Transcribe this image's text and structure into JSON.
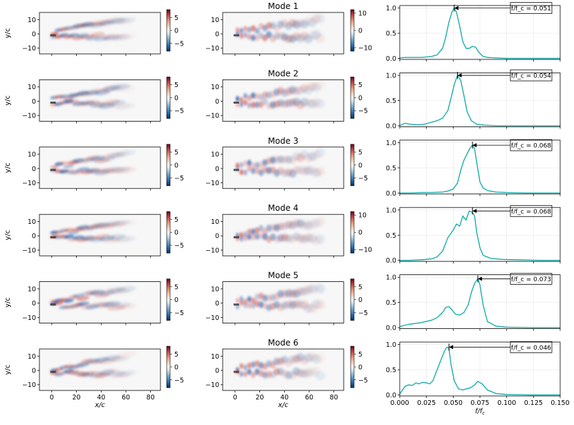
{
  "chart_data": {
    "type": "figure-grid",
    "rows": 6,
    "field_axes": {
      "xlabel": "x/c",
      "ylabel": "y/c",
      "xlim": [
        -10,
        88
      ],
      "ylim": [
        -14,
        15
      ],
      "xticks": [
        "0",
        "20",
        "40",
        "60",
        "80"
      ],
      "yticks": [
        "10",
        "0",
        "−10"
      ]
    },
    "spectrum_axes": {
      "xlabel": "f/f_c",
      "xlim": [
        0.0,
        0.15
      ],
      "ylim": [
        -0.02,
        1.05
      ],
      "xticks": [
        "0.000",
        "0.025",
        "0.050",
        "0.075",
        "0.100",
        "0.125",
        "0.150"
      ],
      "yticks": [
        "0.0",
        "0.5",
        "1.0"
      ]
    },
    "modes": [
      {
        "title": "Mode 1",
        "peak_label": "f/f_c = 0.051",
        "peak_freq": 0.051,
        "cb_left": {
          "ticks": [
            "5",
            "0",
            "−5"
          ],
          "range": 8
        },
        "cb_mid": {
          "ticks": [
            "10",
            "0",
            "−10"
          ],
          "range": 12
        },
        "spectrum": {
          "x": [
            0.0,
            0.005,
            0.01,
            0.015,
            0.02,
            0.025,
            0.03,
            0.035,
            0.04,
            0.043,
            0.046,
            0.049,
            0.051,
            0.053,
            0.056,
            0.059,
            0.062,
            0.065,
            0.068,
            0.071,
            0.074,
            0.078,
            0.082,
            0.09,
            0.1,
            0.12,
            0.15
          ],
          "y": [
            0.01,
            0.02,
            0.02,
            0.02,
            0.02,
            0.03,
            0.04,
            0.07,
            0.2,
            0.42,
            0.72,
            0.93,
            1.0,
            0.92,
            0.65,
            0.33,
            0.2,
            0.2,
            0.24,
            0.22,
            0.12,
            0.04,
            0.02,
            0.01,
            0.0,
            0.0,
            0.0
          ]
        }
      },
      {
        "title": "Mode 2",
        "peak_label": "f/f_c = 0.054",
        "peak_freq": 0.054,
        "cb_left": {
          "ticks": [
            "5",
            "0",
            "−5"
          ],
          "range": 8
        },
        "cb_mid": {
          "ticks": [
            "5",
            "0",
            "−5"
          ],
          "range": 8
        },
        "spectrum": {
          "x": [
            0.0,
            0.005,
            0.01,
            0.015,
            0.02,
            0.025,
            0.03,
            0.035,
            0.04,
            0.045,
            0.048,
            0.051,
            0.054,
            0.057,
            0.06,
            0.063,
            0.067,
            0.072,
            0.08,
            0.09,
            0.1,
            0.12,
            0.15
          ],
          "y": [
            0.0,
            0.05,
            0.03,
            0.02,
            0.02,
            0.04,
            0.07,
            0.1,
            0.15,
            0.3,
            0.55,
            0.82,
            1.0,
            0.9,
            0.6,
            0.28,
            0.1,
            0.03,
            0.01,
            0.0,
            0.0,
            0.0,
            0.0
          ]
        }
      },
      {
        "title": "Mode 3",
        "peak_label": "f/f_c = 0.068",
        "peak_freq": 0.068,
        "cb_left": {
          "ticks": [
            "5",
            "0",
            "−5"
          ],
          "range": 8
        },
        "cb_mid": {
          "ticks": [
            "5",
            "0",
            "−5"
          ],
          "range": 8
        },
        "spectrum": {
          "x": [
            0.0,
            0.01,
            0.02,
            0.03,
            0.04,
            0.045,
            0.05,
            0.054,
            0.057,
            0.06,
            0.063,
            0.066,
            0.068,
            0.07,
            0.072,
            0.075,
            0.078,
            0.082,
            0.09,
            0.1,
            0.12,
            0.15
          ],
          "y": [
            0.0,
            0.0,
            0.01,
            0.01,
            0.02,
            0.04,
            0.08,
            0.2,
            0.45,
            0.65,
            0.78,
            0.9,
            0.95,
            0.88,
            0.6,
            0.22,
            0.1,
            0.05,
            0.02,
            0.01,
            0.0,
            0.0
          ]
        }
      },
      {
        "title": "Mode 4",
        "peak_label": "f/f_c = 0.068",
        "peak_freq": 0.068,
        "cb_left": {
          "ticks": [
            "5",
            "0",
            "−5"
          ],
          "range": 8
        },
        "cb_mid": {
          "ticks": [
            "10",
            "0",
            "−10"
          ],
          "range": 12
        },
        "spectrum": {
          "x": [
            0.0,
            0.01,
            0.02,
            0.03,
            0.035,
            0.04,
            0.045,
            0.05,
            0.053,
            0.056,
            0.059,
            0.062,
            0.065,
            0.068,
            0.07,
            0.072,
            0.075,
            0.078,
            0.085,
            0.095,
            0.11,
            0.13,
            0.15
          ],
          "y": [
            0.0,
            0.0,
            0.01,
            0.03,
            0.07,
            0.18,
            0.45,
            0.6,
            0.72,
            0.68,
            0.88,
            0.8,
            0.98,
            0.95,
            0.88,
            0.55,
            0.25,
            0.1,
            0.04,
            0.02,
            0.01,
            0.0,
            0.0
          ]
        }
      },
      {
        "title": "Mode 5",
        "peak_label": "f/f_c = 0.073",
        "peak_freq": 0.073,
        "cb_left": {
          "ticks": [
            "5",
            "0",
            "−5"
          ],
          "range": 8
        },
        "cb_mid": {
          "ticks": [
            "5",
            "0",
            "−5"
          ],
          "range": 8
        },
        "spectrum": {
          "x": [
            0.0,
            0.005,
            0.01,
            0.02,
            0.03,
            0.035,
            0.04,
            0.043,
            0.046,
            0.049,
            0.052,
            0.056,
            0.06,
            0.064,
            0.067,
            0.07,
            0.073,
            0.075,
            0.078,
            0.082,
            0.09,
            0.1,
            0.12,
            0.15
          ],
          "y": [
            0.02,
            0.05,
            0.07,
            0.1,
            0.15,
            0.2,
            0.3,
            0.4,
            0.42,
            0.35,
            0.27,
            0.25,
            0.3,
            0.45,
            0.7,
            0.88,
            0.97,
            0.85,
            0.45,
            0.12,
            0.03,
            0.01,
            0.0,
            0.0
          ]
        }
      },
      {
        "title": "Mode 6",
        "peak_label": "f/f_c = 0.046",
        "peak_freq": 0.046,
        "cb_left": {
          "ticks": [
            "5",
            "0",
            "−5"
          ],
          "range": 8
        },
        "cb_mid": {
          "ticks": [
            "5",
            "0",
            "−5"
          ],
          "range": 8
        },
        "spectrum": {
          "x": [
            0.0,
            0.002,
            0.005,
            0.008,
            0.012,
            0.015,
            0.018,
            0.021,
            0.025,
            0.028,
            0.031,
            0.035,
            0.039,
            0.042,
            0.044,
            0.046,
            0.048,
            0.051,
            0.055,
            0.059,
            0.062,
            0.066,
            0.07,
            0.073,
            0.077,
            0.082,
            0.09,
            0.1,
            0.12,
            0.15
          ],
          "y": [
            0.02,
            0.08,
            0.17,
            0.2,
            0.19,
            0.24,
            0.22,
            0.25,
            0.24,
            0.22,
            0.28,
            0.5,
            0.72,
            0.88,
            0.95,
            0.93,
            0.6,
            0.28,
            0.12,
            0.1,
            0.12,
            0.14,
            0.2,
            0.27,
            0.22,
            0.1,
            0.03,
            0.01,
            0.0,
            0.0
          ]
        }
      }
    ]
  }
}
